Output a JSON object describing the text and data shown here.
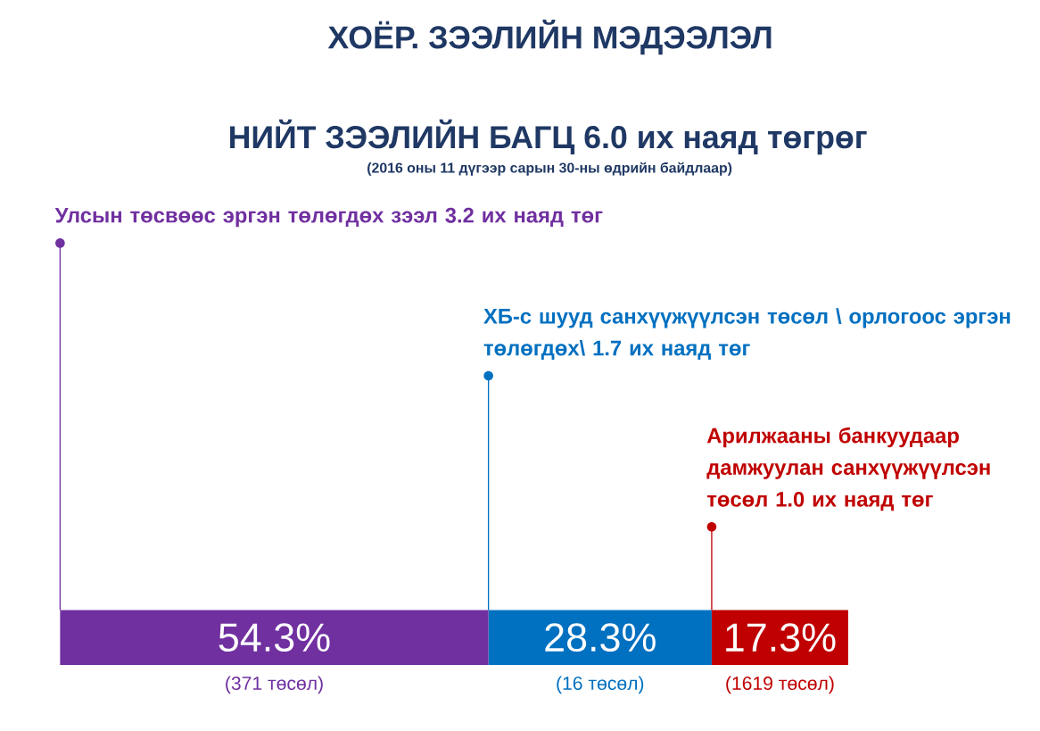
{
  "chart_data": {
    "type": "bar",
    "stacked": true,
    "orientation": "horizontal",
    "title": "ХОЁР. ЗЭЭЛИЙН МЭДЭЭЛЭЛ",
    "subtitle": "НИЙТ ЗЭЭЛИЙН БАГЦ 6.0 их наяд  төгрөг",
    "annotations": [
      "(2016 оны 11 дүгээр сарын 30-ны өдрийн байдлаар)",
      "(371 төсөл)",
      "(16 төсөл)",
      "(1619 төсөл)"
    ],
    "categories": [
      null
    ],
    "series": [
      {
        "name": "Улсын төсвөөс эргэн төлөгдөх зээл 3.2 их наяд төг",
        "color": "#7030a0",
        "values": [
          54.3
        ],
        "value_labels": [
          "54.3%"
        ]
      },
      {
        "name": "ХБ-с шууд санхүүжүүлсэн төсөл \\ орлогоос эргэн төлөгдөх\\ 1.7 их наяд төг",
        "color": "#0070c0",
        "values": [
          28.3
        ],
        "value_labels": [
          "28.3%"
        ]
      },
      {
        "name": "Арилжааны банкуудаар дамжуулан санхүүжүүлсэн төсөл 1.0 их наяд төг",
        "color": "#c00000",
        "values": [
          17.3
        ],
        "value_labels": [
          "17.3%"
        ]
      }
    ]
  }
}
